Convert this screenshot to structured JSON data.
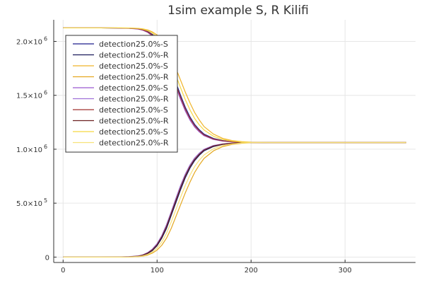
{
  "chart_data": {
    "type": "line",
    "title": "1sim example S, R Kilifi",
    "xlabel": "",
    "ylabel": "",
    "xlim": [
      -10,
      375
    ],
    "ylim": [
      -50000,
      2200000
    ],
    "grid": true,
    "legend_position": "top-left",
    "x_ticks": [
      {
        "value": 0,
        "label": "0"
      },
      {
        "value": 100,
        "label": "100"
      },
      {
        "value": 200,
        "label": "200"
      },
      {
        "value": 300,
        "label": "300"
      }
    ],
    "y_ticks": [
      {
        "value": 0,
        "base": "0",
        "exp": ""
      },
      {
        "value": 500000,
        "base": "5.0×10",
        "exp": "5"
      },
      {
        "value": 1000000,
        "base": "1.0×10",
        "exp": "6"
      },
      {
        "value": 1500000,
        "base": "1.5×10",
        "exp": "6"
      },
      {
        "value": 2000000,
        "base": "2.0×10",
        "exp": "6"
      }
    ],
    "x": [
      0,
      20,
      40,
      60,
      70,
      80,
      85,
      90,
      95,
      100,
      105,
      110,
      115,
      120,
      125,
      130,
      135,
      140,
      145,
      150,
      160,
      170,
      180,
      190,
      200,
      220,
      250,
      300,
      365
    ],
    "series": [
      {
        "name": "detection25.0%-S",
        "color": "#1e1e8c",
        "values": [
          2125000,
          2125000,
          2125000,
          2124000,
          2122000,
          2117000,
          2108000,
          2092000,
          2065000,
          2020000,
          1950000,
          1860000,
          1740000,
          1620000,
          1500000,
          1390000,
          1300000,
          1230000,
          1180000,
          1140000,
          1100000,
          1080000,
          1070000,
          1065000,
          1062000,
          1062000,
          1062000,
          1062000,
          1062000
        ]
      },
      {
        "name": "detection25.0%-R",
        "color": "#1a1a5c",
        "values": [
          0,
          0,
          0,
          1000,
          3000,
          8000,
          17000,
          33000,
          60000,
          105000,
          175000,
          265000,
          385000,
          505000,
          625000,
          735000,
          825000,
          895000,
          945000,
          985000,
          1025000,
          1045000,
          1055000,
          1060000,
          1062000,
          1062000,
          1062000,
          1062000,
          1062000
        ]
      },
      {
        "name": "detection25.0%-S",
        "color": "#f0b429",
        "values": [
          2125000,
          2125000,
          2125000,
          2125000,
          2124000,
          2121000,
          2116000,
          2106000,
          2088000,
          2060000,
          2015000,
          1950000,
          1860000,
          1750000,
          1640000,
          1530000,
          1430000,
          1340000,
          1270000,
          1210000,
          1140000,
          1100000,
          1080000,
          1070000,
          1065000,
          1062000,
          1062000,
          1062000,
          1062000
        ]
      },
      {
        "name": "detection25.0%-R",
        "color": "#e5a820",
        "values": [
          0,
          0,
          0,
          0,
          1000,
          4000,
          9000,
          19000,
          37000,
          65000,
          110000,
          175000,
          265000,
          375000,
          485000,
          595000,
          695000,
          785000,
          855000,
          915000,
          985000,
          1025000,
          1045000,
          1055000,
          1060000,
          1062000,
          1062000,
          1062000,
          1062000
        ]
      },
      {
        "name": "detection25.0%-S",
        "color": "#9b59d0",
        "values": [
          2125000,
          2125000,
          2125000,
          2124000,
          2121000,
          2114000,
          2103000,
          2083000,
          2050000,
          2000000,
          1925000,
          1825000,
          1705000,
          1580000,
          1460000,
          1355000,
          1270000,
          1205000,
          1160000,
          1125000,
          1090000,
          1075000,
          1068000,
          1064000,
          1062000,
          1062000,
          1062000,
          1062000,
          1062000
        ]
      },
      {
        "name": "detection25.0%-R",
        "color": "#a070d8",
        "values": [
          0,
          0,
          0,
          1000,
          4000,
          11000,
          22000,
          42000,
          75000,
          125000,
          200000,
          300000,
          420000,
          545000,
          665000,
          770000,
          855000,
          920000,
          965000,
          1000000,
          1035000,
          1050000,
          1057000,
          1061000,
          1062000,
          1062000,
          1062000,
          1062000,
          1062000
        ]
      },
      {
        "name": "detection25.0%-S",
        "color": "#a0322d",
        "values": [
          2125000,
          2125000,
          2125000,
          2124000,
          2122000,
          2116000,
          2106000,
          2088000,
          2058000,
          2010000,
          1938000,
          1842000,
          1722000,
          1600000,
          1480000,
          1372000,
          1285000,
          1218000,
          1170000,
          1132000,
          1095000,
          1078000,
          1069000,
          1064000,
          1062000,
          1062000,
          1062000,
          1062000,
          1062000
        ]
      },
      {
        "name": "detection25.0%-R",
        "color": "#6b2020",
        "values": [
          0,
          0,
          0,
          1000,
          3000,
          9000,
          19000,
          37000,
          67000,
          115000,
          187000,
          283000,
          403000,
          525000,
          645000,
          753000,
          840000,
          907000,
          955000,
          993000,
          1030000,
          1047000,
          1056000,
          1061000,
          1062000,
          1062000,
          1062000,
          1062000,
          1062000
        ]
      },
      {
        "name": "detection25.0%-S",
        "color": "#f5d742",
        "values": [
          2125000,
          2125000,
          2125000,
          2125000,
          2124000,
          2120000,
          2113000,
          2100000,
          2078000,
          2042000,
          1985000,
          1905000,
          1800000,
          1685000,
          1570000,
          1460000,
          1365000,
          1285000,
          1225000,
          1178000,
          1120000,
          1090000,
          1075000,
          1067000,
          1064000,
          1062000,
          1062000,
          1062000,
          1062000
        ]
      },
      {
        "name": "detection25.0%-R",
        "color": "#f7e27a",
        "values": [
          0,
          0,
          0,
          0,
          1000,
          5000,
          12000,
          25000,
          47000,
          83000,
          140000,
          220000,
          325000,
          440000,
          555000,
          665000,
          760000,
          840000,
          900000,
          947000,
          1005000,
          1035000,
          1050000,
          1058000,
          1061000,
          1062000,
          1062000,
          1062000,
          1062000
        ]
      }
    ]
  }
}
